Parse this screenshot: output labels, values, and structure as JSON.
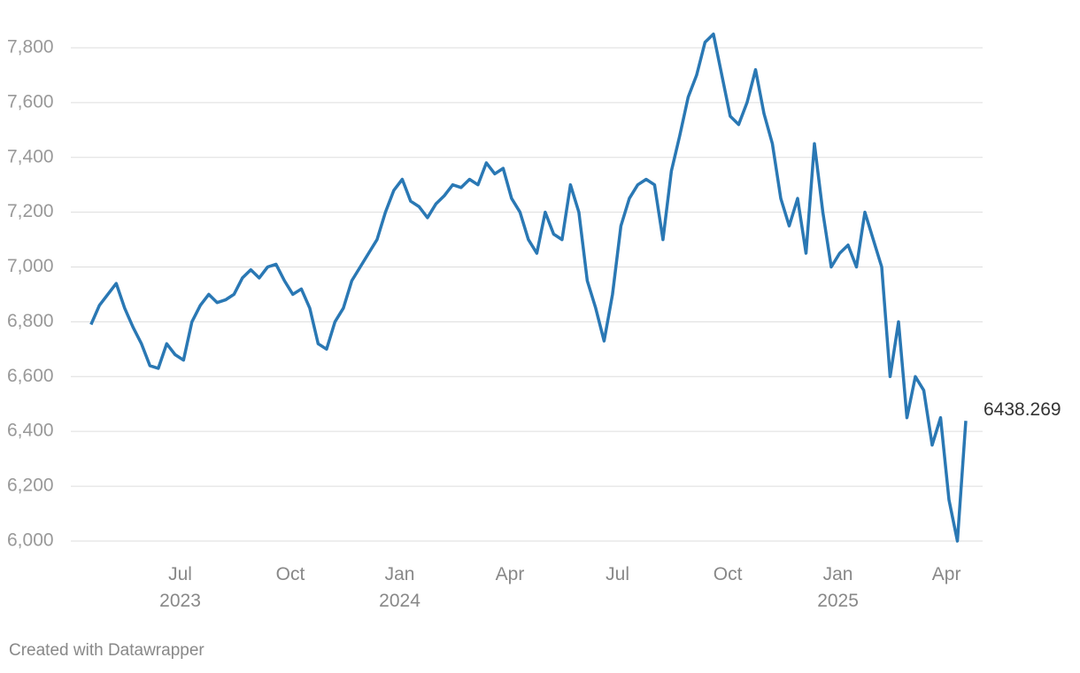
{
  "chart_data": {
    "type": "line",
    "color": "#2a78b4",
    "grid": true,
    "credit": "Created with Datawrapper",
    "values": [
      6790,
      6860,
      6900,
      6940,
      6850,
      6780,
      6720,
      6640,
      6630,
      6720,
      6680,
      6660,
      6800,
      6860,
      6900,
      6870,
      6880,
      6900,
      6960,
      6990,
      6960,
      7000,
      7010,
      6950,
      6900,
      6920,
      6850,
      6720,
      6700,
      6800,
      6850,
      6950,
      7000,
      7050,
      7100,
      7200,
      7280,
      7320,
      7240,
      7220,
      7180,
      7230,
      7260,
      7300,
      7290,
      7320,
      7300,
      7380,
      7340,
      7360,
      7250,
      7200,
      7100,
      7050,
      7200,
      7120,
      7100,
      7300,
      7200,
      6950,
      6850,
      6730,
      6900,
      7150,
      7250,
      7300,
      7320,
      7300,
      7100,
      7350,
      7480,
      7620,
      7700,
      7820,
      7850,
      7700,
      7550,
      7520,
      7600,
      7720,
      7560,
      7450,
      7250,
      7150,
      7250,
      7050,
      7450,
      7200,
      7000,
      7050,
      7080,
      7000,
      7200,
      7100,
      7000,
      6600,
      6800,
      6450,
      6600,
      6550,
      6350,
      6450,
      6150,
      6000,
      6438.269
    ],
    "ylim": [
      5900,
      7900
    ],
    "yticks": [
      {
        "value": 6000,
        "label": "6,000"
      },
      {
        "value": 6200,
        "label": "6,200"
      },
      {
        "value": 6400,
        "label": "6,400"
      },
      {
        "value": 6600,
        "label": "6,600"
      },
      {
        "value": 6800,
        "label": "6,800"
      },
      {
        "value": 7000,
        "label": "7,000"
      },
      {
        "value": 7200,
        "label": "7,200"
      },
      {
        "value": 7400,
        "label": "7,400"
      },
      {
        "value": 7600,
        "label": "7,600"
      },
      {
        "value": 7800,
        "label": "7,800"
      }
    ],
    "xlim": [
      -2.4,
      106
    ],
    "xticks": [
      {
        "value": 10.6,
        "label": "Jul\n2023"
      },
      {
        "value": 23.7,
        "label": "Oct"
      },
      {
        "value": 36.7,
        "label": "Jan\n2024"
      },
      {
        "value": 49.8,
        "label": "Apr"
      },
      {
        "value": 62.6,
        "label": "Jul"
      },
      {
        "value": 75.7,
        "label": "Oct"
      },
      {
        "value": 88.8,
        "label": "Jan\n2025"
      },
      {
        "value": 101.7,
        "label": "Apr"
      }
    ]
  }
}
